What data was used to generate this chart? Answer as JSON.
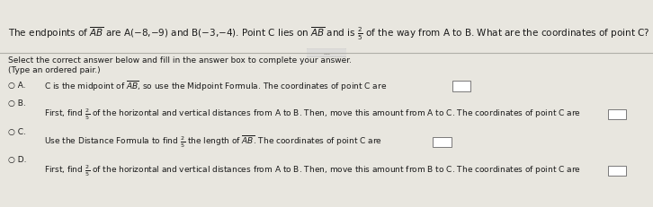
{
  "bg_color": "#e8e6df",
  "bg_color_top": "#dddbd3",
  "text_color": "#1a1a1a",
  "divider_color": "#b0afa8",
  "font_size": 7.5,
  "font_size_small": 6.5,
  "top_line": "The endpoints of $\\overline{AB}$ are A(−8,−9) and B(−3,−4). Point C lies on $\\overline{AB}$ and is $\\frac{2}{5}$ of the way from A to B. What are the coordinates of point C? Explain how you found your answer.",
  "select_line": "Select the correct answer below and fill in the answer box to complete your answer.",
  "type_line": "(Type an ordered pair.)",
  "optA": "C is the midpoint of $\\overline{AB}$, so use the Midpoint Formula. The coordinates of point C are",
  "optB1": "First, find $\\frac{2}{5}$ of the horizontal and vertical distances from A to B. Then, move this amount from A to C. The coordinates of point C are",
  "optC1": "Use the Distance Formula to find $\\frac{2}{5}$ the length of $\\overline{AB}$. The coordinates of point C are",
  "optD1": "First, find $\\frac{2}{5}$ of the horizontal and vertical distances from A to B. Then, move this amount from B to C. The coordinates of point C are",
  "circle": "○"
}
